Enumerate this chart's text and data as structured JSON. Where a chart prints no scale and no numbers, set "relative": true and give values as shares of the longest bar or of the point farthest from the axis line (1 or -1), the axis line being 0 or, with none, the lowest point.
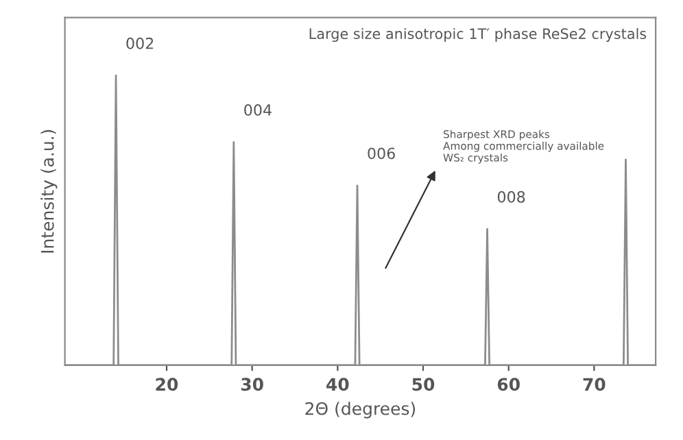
{
  "chart_data": {
    "type": "line",
    "title": "Large size anisotropic 1T′ phase ReSe2 crystals",
    "xlabel": "2Θ (degrees)",
    "ylabel": "Intensity (a.u.)",
    "relative": true,
    "x": [
      8.2,
      13.8,
      14.07,
      14.35,
      27.6,
      27.85,
      28.1,
      42.05,
      42.3,
      42.55,
      57.25,
      57.5,
      57.75,
      73.45,
      73.7,
      73.95,
      77.1
    ],
    "series": [
      {
        "color": "#8c8c8c",
        "values": [
          0,
          0,
          1,
          0,
          0,
          0.77,
          0,
          0,
          0.62,
          0,
          0,
          0.47,
          0,
          0,
          0.71,
          0,
          0
        ]
      }
    ],
    "xlim": [
      8.1,
      77.2
    ],
    "xticks": [
      20,
      30,
      40,
      50,
      60,
      70
    ],
    "grid": false,
    "marker": "none",
    "line_style": "solid",
    "annotations": [
      {
        "text": "002",
        "x": 14.07,
        "y": 1
      },
      {
        "text": "004",
        "x": 27.85,
        "y": 0.77
      },
      {
        "text": "006",
        "x": 42.3,
        "y": 0.62
      },
      {
        "text": "008",
        "x": 57.5,
        "y": 0.47
      },
      "Sharpest XRD peaks\nAmong commercially available\nWS₂ crystals"
    ]
  }
}
